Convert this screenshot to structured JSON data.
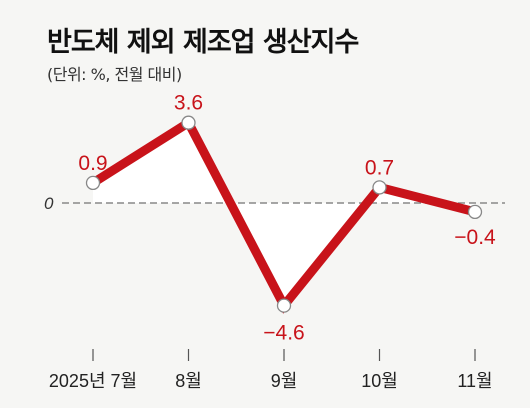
{
  "title": "반도체 제외 제조업 생산지수",
  "subtitle": "(단위: %, 전월 대비)",
  "colors": {
    "line": "#c8131a",
    "label": "#c8131a",
    "fill": "#ffffff",
    "zero_line": "#888888",
    "background": "#f6f6f4"
  },
  "chart_data": {
    "type": "line",
    "categories": [
      "2025년 7월",
      "8월",
      "9월",
      "10월",
      "11월"
    ],
    "series": [
      {
        "values": [
          0.9,
          3.6,
          -4.6,
          0.7,
          -0.4
        ]
      }
    ],
    "data_labels": [
      "0.9",
      "3.6",
      "−4.6",
      "0.7",
      "−0.4"
    ],
    "zero_label": "0",
    "title": "반도체 제외 제조업 생산지수",
    "subtitle": "(단위: %, 전월 대비)",
    "xlabel": "",
    "ylabel": "",
    "grid": false,
    "legend": "none"
  }
}
